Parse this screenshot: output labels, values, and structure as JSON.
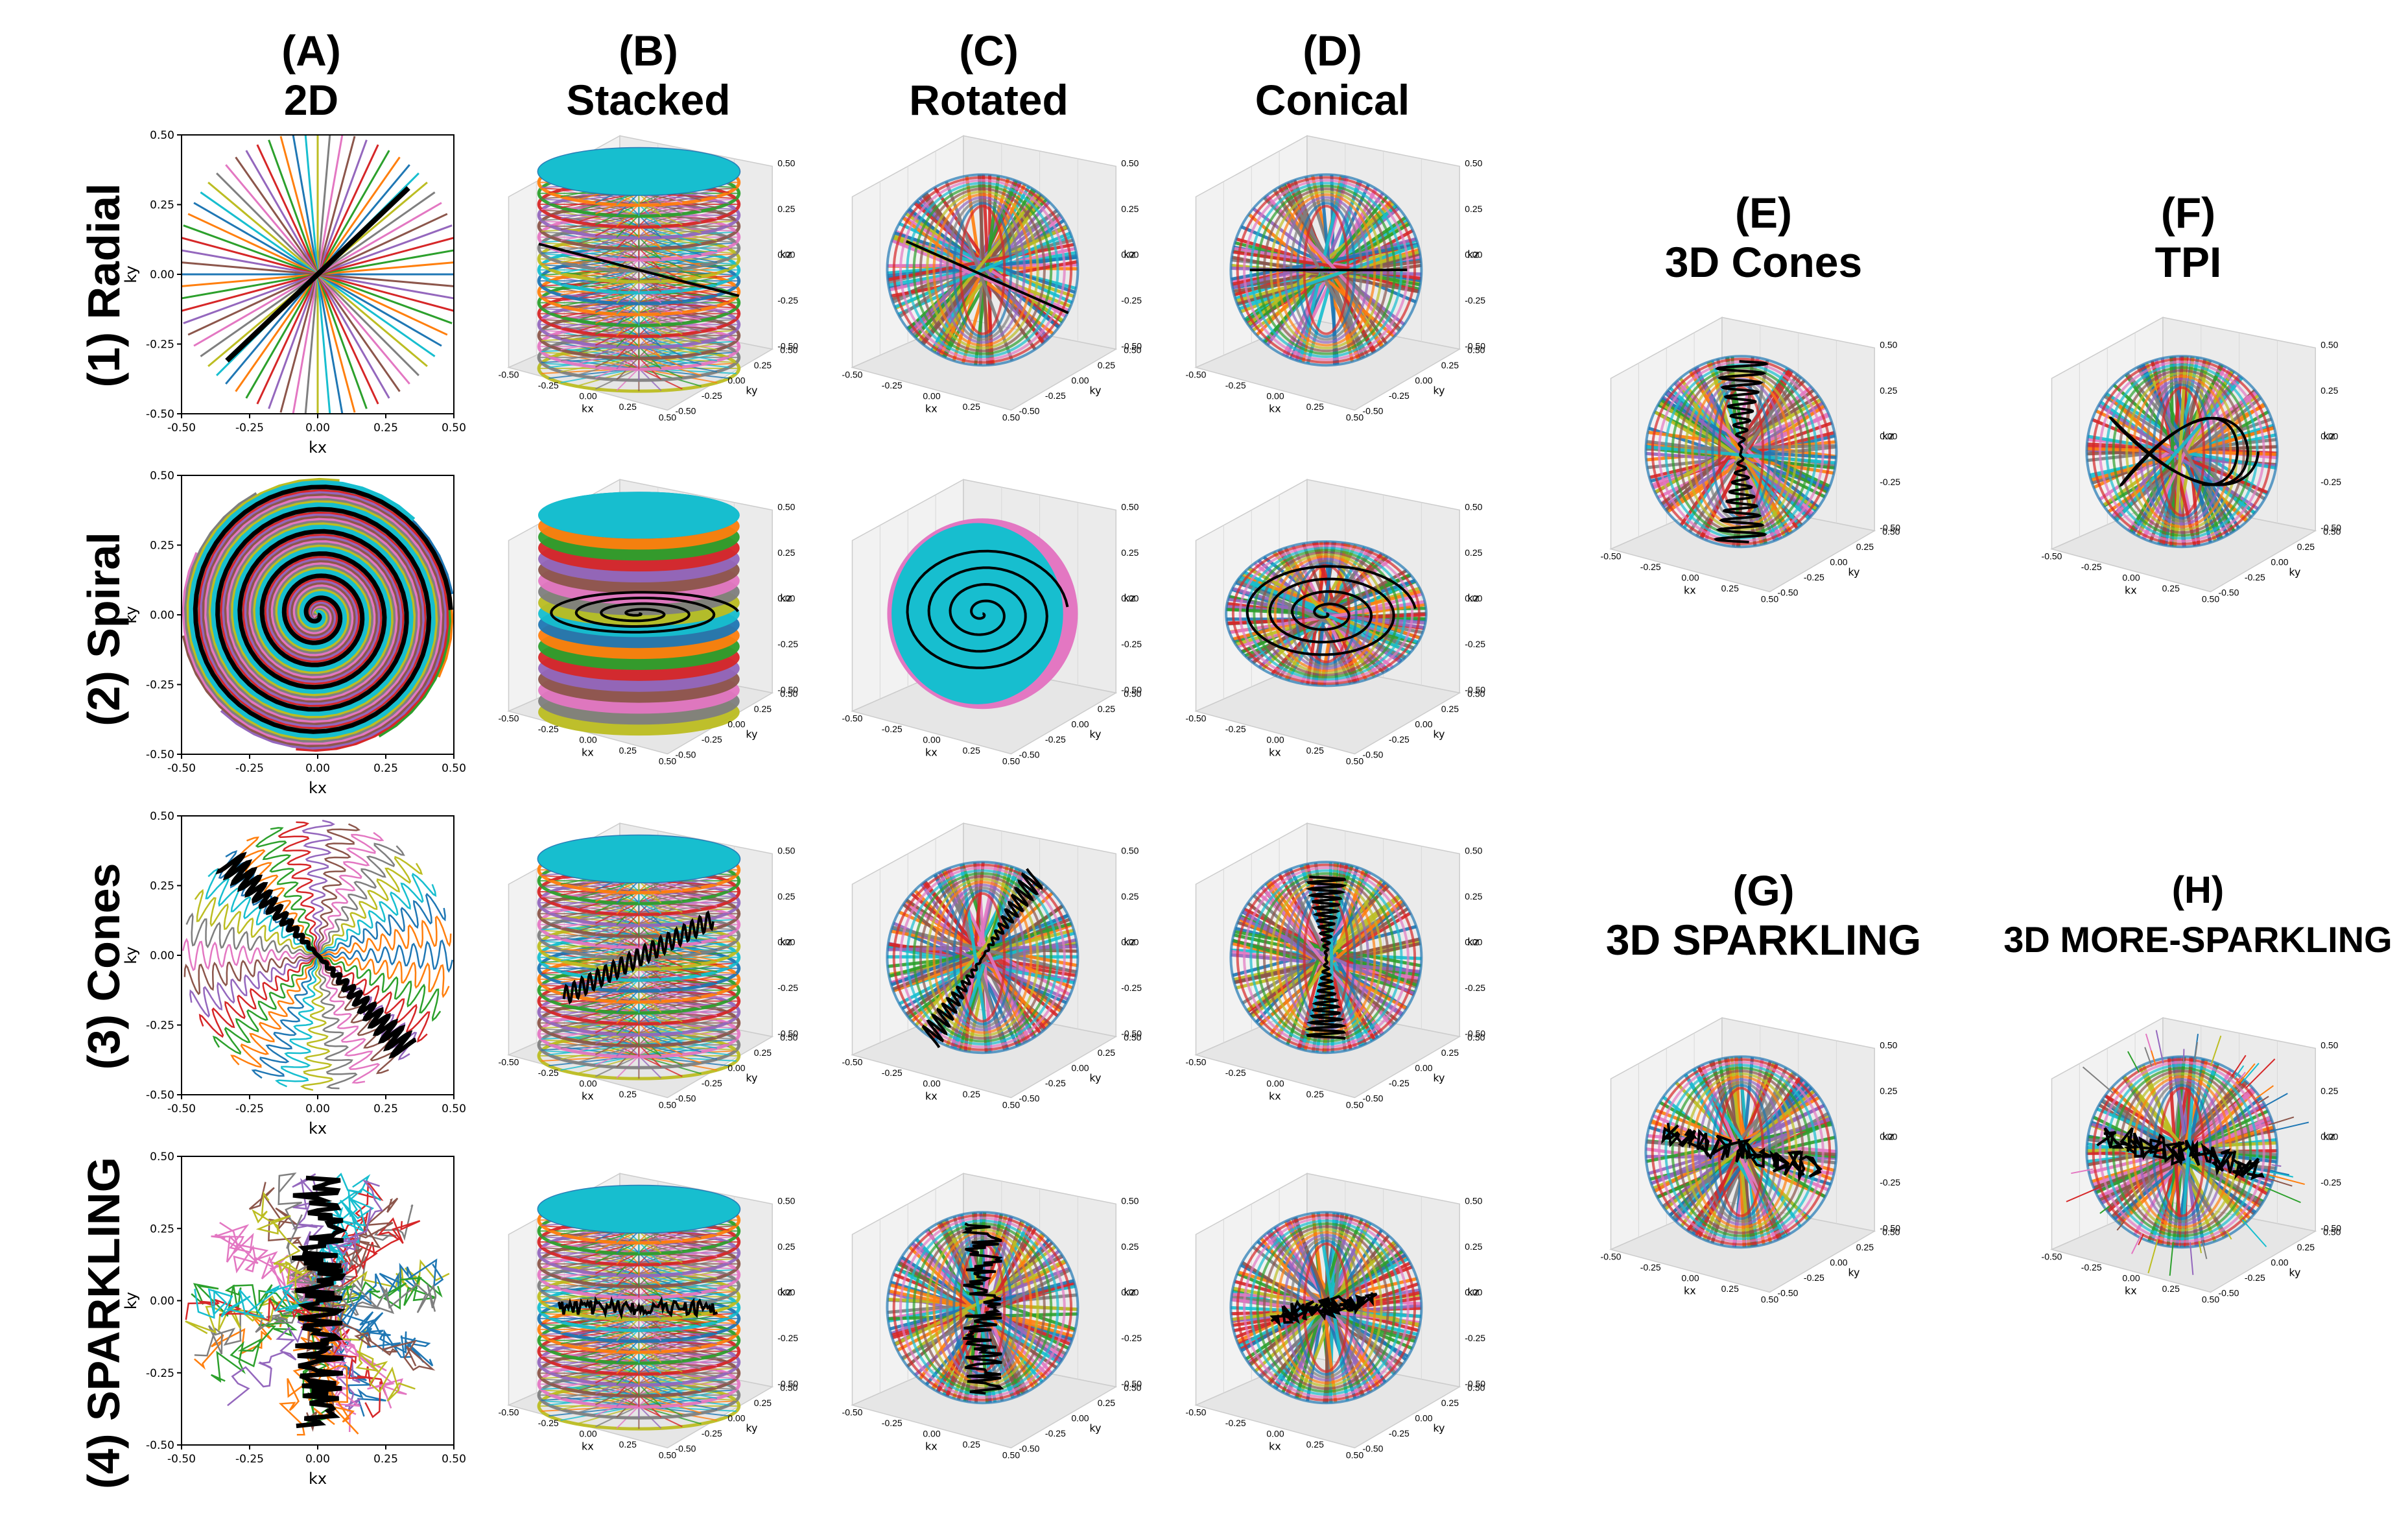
{
  "columns": [
    {
      "letter": "(A)",
      "name": "2D"
    },
    {
      "letter": "(B)",
      "name": "Stacked"
    },
    {
      "letter": "(C)",
      "name": "Rotated"
    },
    {
      "letter": "(D)",
      "name": "Conical"
    },
    {
      "letter": "(E)",
      "name": "3D Cones"
    },
    {
      "letter": "(F)",
      "name": "TPI"
    },
    {
      "letter": "(G)",
      "name": "3D SPARKLING"
    },
    {
      "letter": "(H)",
      "name": "3D MORE-SPARKLING"
    }
  ],
  "rows": [
    {
      "label": "(1) Radial"
    },
    {
      "label": "(2) Spiral"
    },
    {
      "label": "(3) Cones"
    },
    {
      "label": "(4) SPARKLING"
    }
  ],
  "axes": {
    "x_label": "kx",
    "y_label": "ky",
    "z_label": "kz",
    "ticks": [
      "-0.50",
      "-0.25",
      "0.00",
      "0.25",
      "0.50"
    ],
    "ticks_3d": [
      "-0.50",
      "-0.25",
      "0.00",
      "0.25",
      "0.50"
    ]
  },
  "palette": [
    "#1f77b4",
    "#ff7f0e",
    "#2ca02c",
    "#d62728",
    "#9467bd",
    "#8c564b",
    "#e377c2",
    "#7f7f7f",
    "#bcbd22",
    "#17becf"
  ],
  "highlight_color": "#000000"
}
